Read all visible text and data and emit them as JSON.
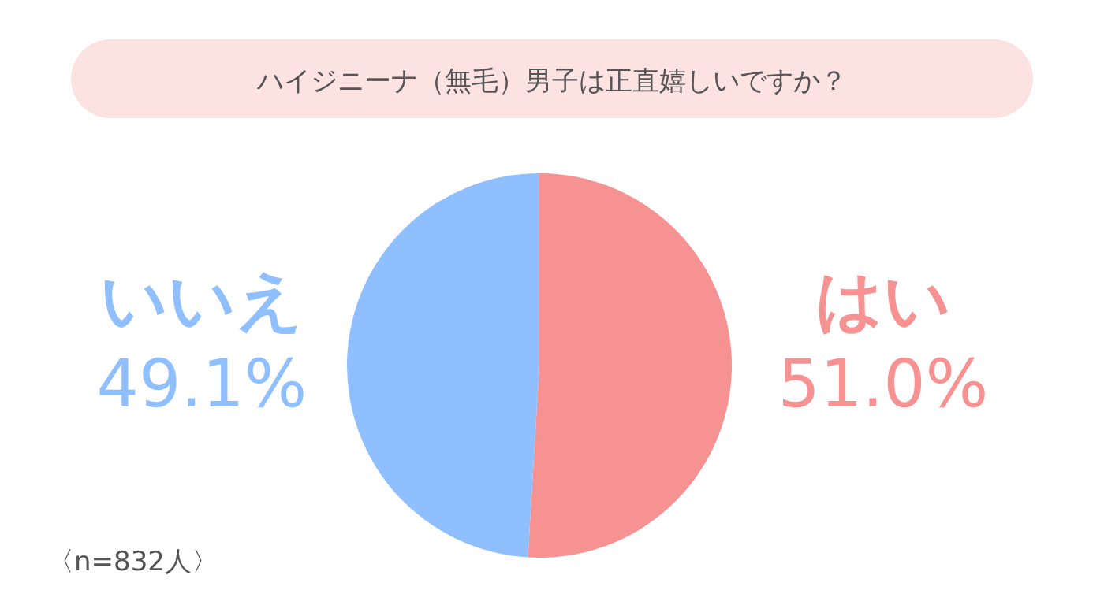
{
  "chart_data": {
    "type": "pie",
    "title": "ハイジニーナ（無毛）男子は正直嬉しいですか？",
    "categories": [
      "はい",
      "いいえ"
    ],
    "values": [
      51.0,
      49.1
    ],
    "colors": [
      "#f79293",
      "#8fbfff"
    ],
    "value_labels": [
      "51.0%",
      "49.1%"
    ],
    "annotations": [
      "〈n=832人〉"
    ]
  }
}
